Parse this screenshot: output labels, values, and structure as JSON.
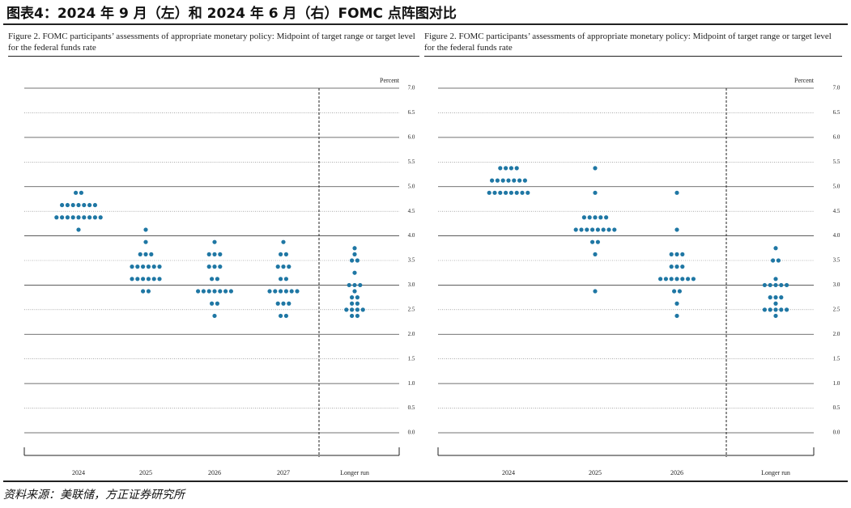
{
  "header": {
    "title": "图表4：2024 年 9 月（左）和 2024 年 6 月（右）FOMC 点阵图对比"
  },
  "chart_data": [
    {
      "type": "dot",
      "title": "Figure 2.  FOMC participants’ assessments of appropriate monetary policy:  Midpoint of target range or target level for the federal funds rate",
      "y_label": "Percent",
      "categories": [
        "2024",
        "2025",
        "2026",
        "2027",
        "Longer run"
      ],
      "color": "#1f77a4",
      "values": [
        [
          4.875,
          4.875,
          4.625,
          4.625,
          4.625,
          4.625,
          4.625,
          4.625,
          4.625,
          4.375,
          4.375,
          4.375,
          4.375,
          4.375,
          4.375,
          4.375,
          4.375,
          4.375,
          4.125
        ],
        [
          4.125,
          3.875,
          3.625,
          3.625,
          3.625,
          3.375,
          3.375,
          3.375,
          3.375,
          3.375,
          3.375,
          3.125,
          3.125,
          3.125,
          3.125,
          3.125,
          3.125,
          2.875,
          2.875
        ],
        [
          3.875,
          3.625,
          3.625,
          3.625,
          3.375,
          3.375,
          3.375,
          3.125,
          3.125,
          2.875,
          2.875,
          2.875,
          2.875,
          2.875,
          2.875,
          2.875,
          2.625,
          2.625,
          2.375
        ],
        [
          3.875,
          3.625,
          3.625,
          3.375,
          3.375,
          3.375,
          3.125,
          3.125,
          2.875,
          2.875,
          2.875,
          2.875,
          2.875,
          2.875,
          2.625,
          2.625,
          2.625,
          2.375,
          2.375
        ],
        [
          3.75,
          3.625,
          3.5,
          3.5,
          3.25,
          3.0,
          3.0,
          3.0,
          2.875,
          2.75,
          2.75,
          2.625,
          2.625,
          2.5,
          2.5,
          2.5,
          2.5,
          2.375,
          2.375
        ]
      ],
      "ylim": [
        0,
        7
      ],
      "yticks": [
        {
          "value": 0,
          "label": "0.0"
        },
        {
          "value": 0.5,
          "label": "0.5"
        },
        {
          "value": 1,
          "label": "1.0"
        },
        {
          "value": 1.5,
          "label": "1.5"
        },
        {
          "value": 2,
          "label": "2.0"
        },
        {
          "value": 2.5,
          "label": "2.5"
        },
        {
          "value": 3,
          "label": "3.0"
        },
        {
          "value": 3.5,
          "label": "3.5"
        },
        {
          "value": 4,
          "label": "4.0"
        },
        {
          "value": 4.5,
          "label": "4.5"
        },
        {
          "value": 5,
          "label": "5.0"
        },
        {
          "value": 5.5,
          "label": "5.5"
        },
        {
          "value": 6,
          "label": "6.0"
        },
        {
          "value": 6.5,
          "label": "6.5"
        },
        {
          "value": 7,
          "label": "7.0"
        }
      ],
      "grid": true
    },
    {
      "type": "dot",
      "title": "Figure 2.  FOMC participants’ assessments of appropriate monetary policy:  Midpoint of target range or target level for the federal funds rate",
      "y_label": "Percent",
      "categories": [
        "2024",
        "2025",
        "2026",
        "Longer run"
      ],
      "color": "#1f77a4",
      "values": [
        [
          5.375,
          5.375,
          5.375,
          5.375,
          5.125,
          5.125,
          5.125,
          5.125,
          5.125,
          5.125,
          5.125,
          4.875,
          4.875,
          4.875,
          4.875,
          4.875,
          4.875,
          4.875,
          4.875
        ],
        [
          5.375,
          4.875,
          4.375,
          4.375,
          4.375,
          4.375,
          4.375,
          4.125,
          4.125,
          4.125,
          4.125,
          4.125,
          4.125,
          4.125,
          4.125,
          3.875,
          3.875,
          3.625,
          2.875
        ],
        [
          4.875,
          4.125,
          3.625,
          3.625,
          3.625,
          3.375,
          3.375,
          3.375,
          3.125,
          3.125,
          3.125,
          3.125,
          3.125,
          3.125,
          3.125,
          2.875,
          2.875,
          2.625,
          2.375
        ],
        [
          3.75,
          3.5,
          3.5,
          3.125,
          3.0,
          3.0,
          3.0,
          3.0,
          3.0,
          2.75,
          2.75,
          2.75,
          2.625,
          2.5,
          2.5,
          2.5,
          2.5,
          2.5,
          2.375
        ]
      ],
      "ylim": [
        0,
        7
      ],
      "yticks": [
        {
          "value": 0,
          "label": "0.0"
        },
        {
          "value": 0.5,
          "label": "0.5"
        },
        {
          "value": 1,
          "label": "1.0"
        },
        {
          "value": 1.5,
          "label": "1.5"
        },
        {
          "value": 2,
          "label": "2.0"
        },
        {
          "value": 2.5,
          "label": "2.5"
        },
        {
          "value": 3,
          "label": "3.0"
        },
        {
          "value": 3.5,
          "label": "3.5"
        },
        {
          "value": 4,
          "label": "4.0"
        },
        {
          "value": 4.5,
          "label": "4.5"
        },
        {
          "value": 5,
          "label": "5.0"
        },
        {
          "value": 5.5,
          "label": "5.5"
        },
        {
          "value": 6,
          "label": "6.0"
        },
        {
          "value": 6.5,
          "label": "6.5"
        },
        {
          "value": 7,
          "label": "7.0"
        }
      ],
      "grid": true
    }
  ],
  "footer": {
    "source": "资料来源：美联储，方正证券研究所"
  }
}
